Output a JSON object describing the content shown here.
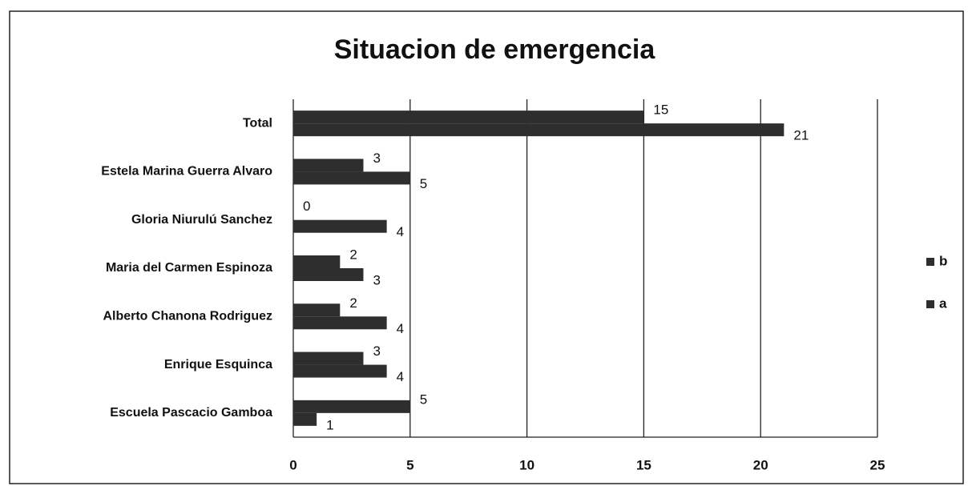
{
  "chart_data": {
    "type": "bar",
    "orientation": "horizontal",
    "title": "Situacion de emergencia",
    "categories": [
      "Total",
      "Estela Marina Guerra Alvaro",
      "Gloria Niurulú Sanchez",
      "Maria del Carmen Espinoza",
      "Alberto Chanona Rodriguez",
      "Enrique Esquinca",
      "Escuela Pascacio Gamboa"
    ],
    "series": [
      {
        "name": "b",
        "color": "#2e2e2e",
        "values": [
          15,
          3,
          0,
          2,
          2,
          3,
          5
        ]
      },
      {
        "name": "a",
        "color": "#2e2e2e",
        "values": [
          21,
          5,
          4,
          3,
          4,
          4,
          1
        ]
      }
    ],
    "xlim": [
      0,
      25
    ],
    "xticks": [
      0,
      5,
      10,
      15,
      20,
      25
    ],
    "grid": true,
    "legend": "right"
  }
}
